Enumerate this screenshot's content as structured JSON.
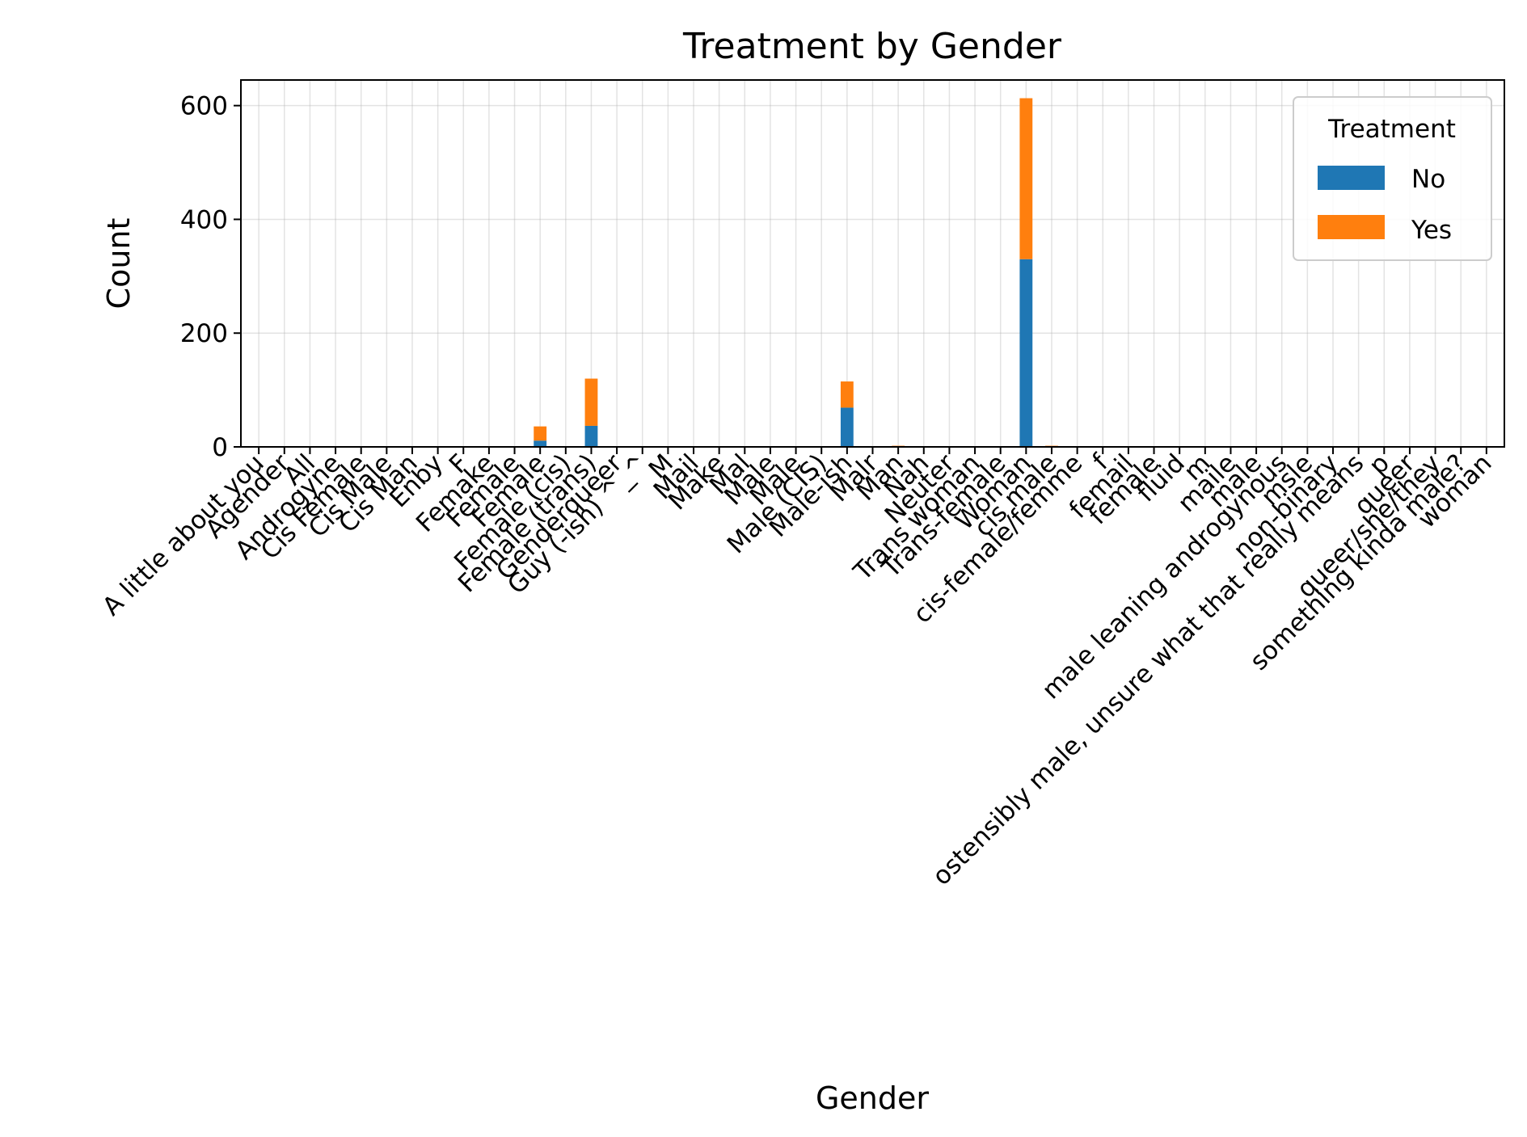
{
  "chart_data": {
    "type": "bar",
    "stacked": true,
    "title": "Treatment by Gender",
    "xlabel": "Gender",
    "ylabel": "Count",
    "ylim": [
      0,
      645
    ],
    "yticks": [
      0,
      200,
      400,
      600
    ],
    "grid": true,
    "legend": {
      "title": "Treatment",
      "position": "top-right"
    },
    "categories": [
      "A little about you",
      "Agender",
      "All",
      "Androgyne",
      "Cis Female",
      "Cis Male",
      "Cis Man",
      "Enby",
      "F",
      "Femake",
      "Female",
      "Female",
      "Female (cis)",
      "Female (trans)",
      "Genderqueer",
      "Guy (-ish) ^_^",
      "M",
      "Mail",
      "Make",
      "Mal",
      "Male",
      "Male",
      "Male (CIS)",
      "Male-ish",
      "Malr",
      "Man",
      "Nah",
      "Neuter",
      "Trans woman",
      "Trans-female",
      "Woman",
      "cis male",
      "cis-female/femme",
      "f",
      "femail",
      "female",
      "fluid",
      "m",
      "maile",
      "male",
      "male leaning androgynous",
      "msle",
      "non-binary",
      "ostensibly male, unsure what that really means",
      "p",
      "queer",
      "queer/she/they",
      "something kinda male?",
      "woman"
    ],
    "series": [
      {
        "name": "No",
        "color": "#1f77b4",
        "values": [
          0,
          0,
          0,
          0,
          0,
          0,
          0,
          0,
          0,
          0,
          0,
          11,
          0,
          37,
          0,
          0,
          0,
          0,
          0,
          0,
          0,
          0,
          0,
          69,
          0,
          0,
          0,
          0,
          0,
          0,
          330,
          0,
          0,
          0,
          0,
          0,
          0,
          0,
          0,
          0,
          0,
          0,
          0,
          0,
          0,
          0,
          0,
          0,
          0
        ]
      },
      {
        "name": "Yes",
        "color": "#ff7f0e",
        "values": [
          0,
          0,
          0,
          0,
          0,
          0,
          0,
          0,
          0,
          0,
          0,
          25,
          0,
          83,
          0,
          0,
          0,
          0,
          0,
          0,
          0,
          0,
          0,
          46,
          0,
          2,
          0,
          0,
          0,
          0,
          283,
          2,
          0,
          0,
          0,
          0,
          0,
          0,
          0,
          0,
          0,
          0,
          0,
          0,
          0,
          0,
          0,
          0,
          0
        ]
      }
    ]
  }
}
